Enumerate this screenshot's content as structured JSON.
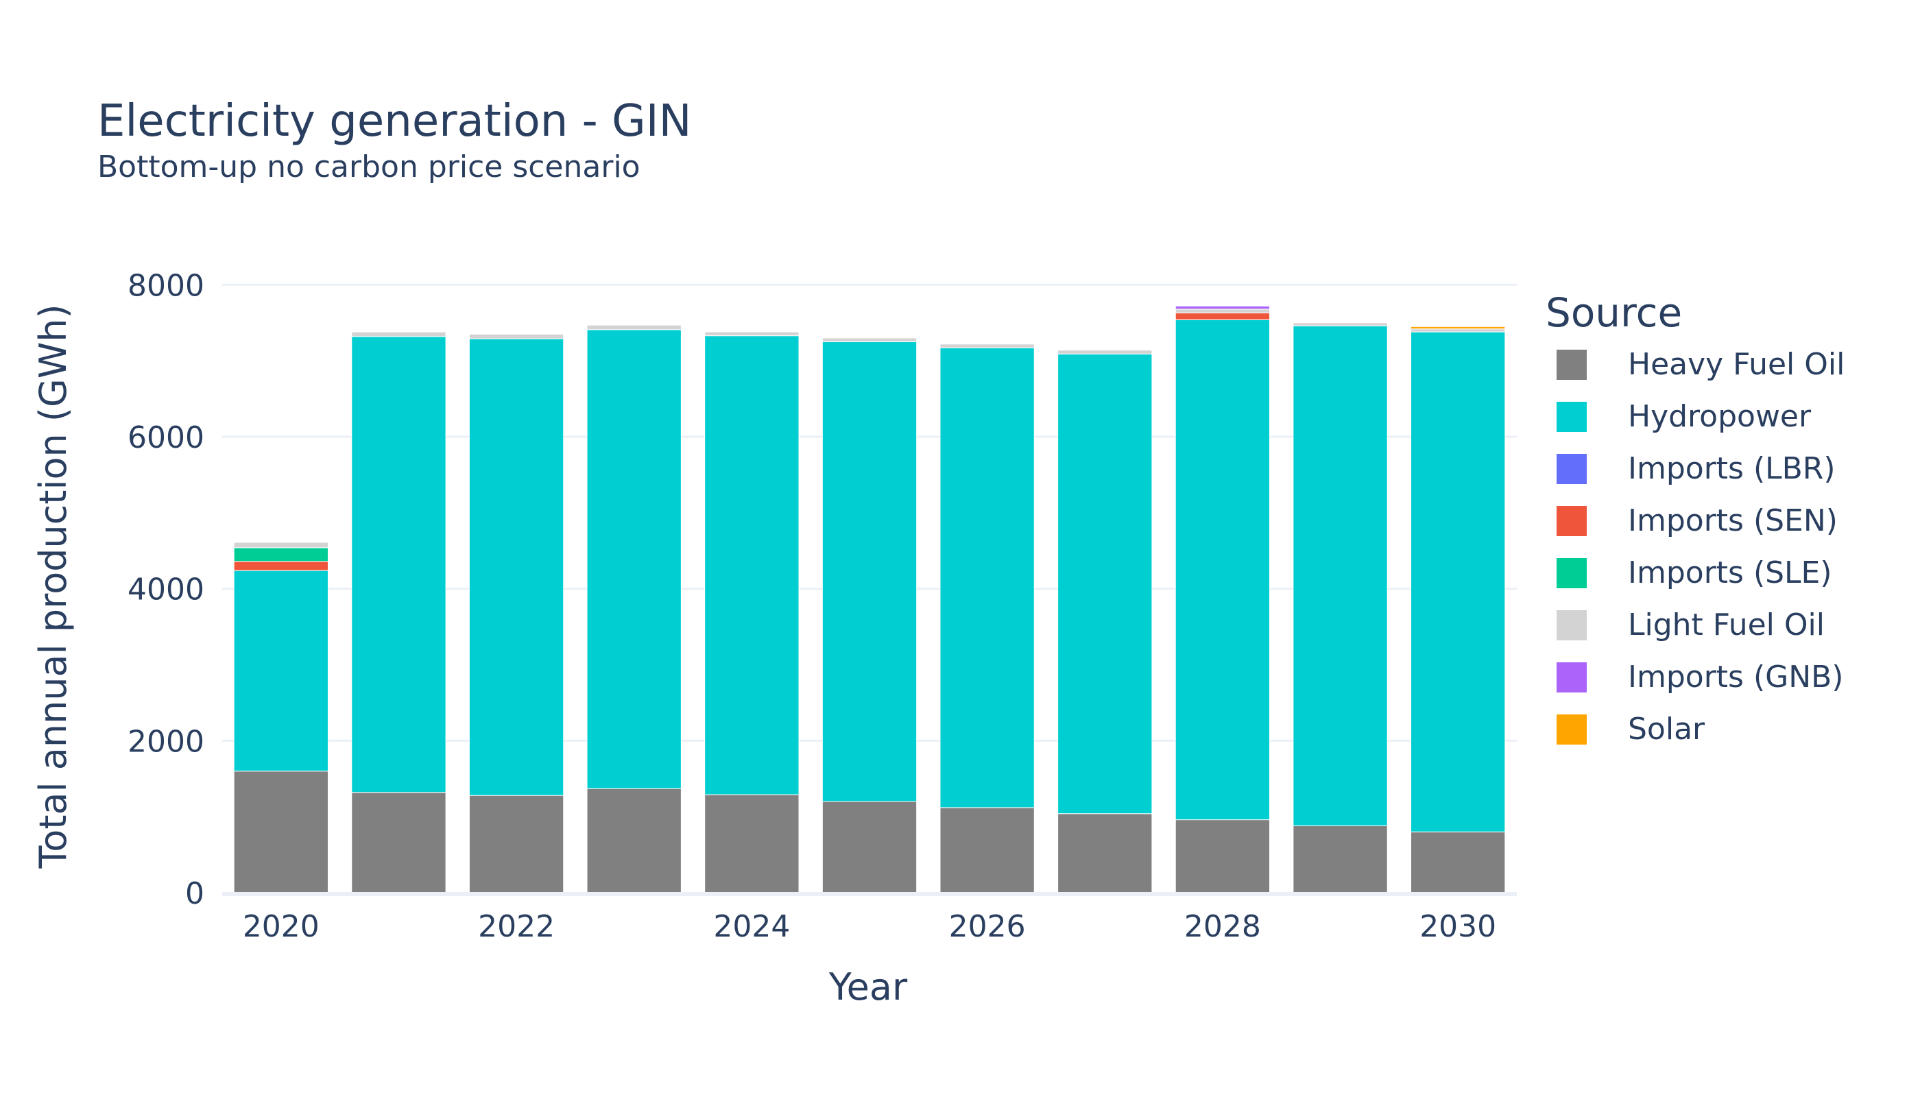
{
  "chart_data": {
    "type": "bar",
    "stacked": true,
    "title": "Electricity generation - GIN",
    "subtitle": "Bottom-up no carbon price scenario",
    "xlabel": "Year",
    "ylabel": "Total annual production (GWh)",
    "x": [
      2020,
      2021,
      2022,
      2023,
      2024,
      2025,
      2026,
      2027,
      2028,
      2029,
      2030
    ],
    "x_ticks": [
      "2020",
      "2022",
      "2024",
      "2026",
      "2028",
      "2030"
    ],
    "y_ticks": [
      "0",
      "2000",
      "4000",
      "6000",
      "8000"
    ],
    "ylim": [
      0,
      8500
    ],
    "grid": true,
    "legend_title": "Source",
    "legend_position": "right",
    "series": [
      {
        "name": "Heavy Fuel Oil",
        "color": "#808080",
        "values": [
          1600,
          1320,
          1280,
          1370,
          1290,
          1200,
          1120,
          1040,
          960,
          880,
          800
        ]
      },
      {
        "name": "Hydropower",
        "color": "#00ced1",
        "values": [
          2640,
          6000,
          6010,
          6040,
          6040,
          6050,
          6050,
          6050,
          6580,
          6580,
          6580
        ]
      },
      {
        "name": "Imports (LBR)",
        "color": "#636efa",
        "values": [
          0,
          0,
          0,
          0,
          0,
          0,
          0,
          0,
          0,
          0,
          0
        ]
      },
      {
        "name": "Imports (SEN)",
        "color": "#ef553b",
        "values": [
          120,
          0,
          0,
          0,
          0,
          0,
          0,
          0,
          90,
          0,
          0
        ]
      },
      {
        "name": "Imports (SLE)",
        "color": "#00cc96",
        "values": [
          180,
          0,
          0,
          0,
          0,
          0,
          0,
          0,
          0,
          0,
          0
        ]
      },
      {
        "name": "Light Fuel Oil",
        "color": "#d3d3d3",
        "values": [
          70,
          60,
          60,
          60,
          50,
          50,
          50,
          50,
          50,
          40,
          40
        ]
      },
      {
        "name": "Imports (GNB)",
        "color": "#ab63fa",
        "values": [
          0,
          0,
          0,
          0,
          0,
          0,
          0,
          0,
          40,
          0,
          0
        ]
      },
      {
        "name": "Solar",
        "color": "#ffa500",
        "values": [
          0,
          0,
          0,
          0,
          0,
          0,
          0,
          0,
          0,
          0,
          30
        ]
      }
    ]
  }
}
